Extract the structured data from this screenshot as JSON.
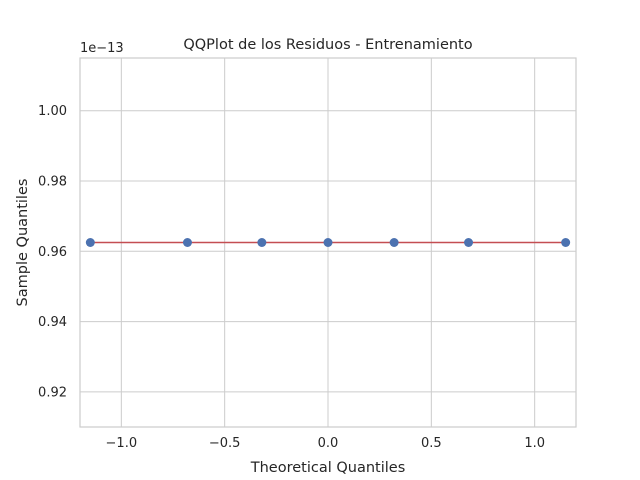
{
  "chart_data": {
    "type": "scatter",
    "title": "QQPlot de los Residuos - Entrenamiento",
    "xlabel": "Theoretical Quantiles",
    "ylabel": "Sample Quantiles",
    "y_offset_label": "1e−13",
    "xlim": [
      -1.2,
      1.2
    ],
    "ylim": [
      0.91,
      1.015
    ],
    "x_ticks": [
      -1.0,
      -0.5,
      0.0,
      0.5,
      1.0
    ],
    "x_tick_labels": [
      "−1.0",
      "−0.5",
      "0.0",
      "0.5",
      "1.0"
    ],
    "y_ticks": [
      0.92,
      0.94,
      0.96,
      0.98,
      1.0
    ],
    "y_tick_labels": [
      "0.92",
      "0.94",
      "0.96",
      "0.98",
      "1.00"
    ],
    "grid": true,
    "points": {
      "x": [
        -1.15,
        -0.68,
        -0.32,
        0.0,
        0.32,
        0.68,
        1.15
      ],
      "y": [
        0.9625,
        0.9625,
        0.9625,
        0.9625,
        0.9625,
        0.9625,
        0.9625
      ],
      "color": "#4c72b0"
    },
    "reference_line": {
      "x": [
        -1.15,
        1.15
      ],
      "y": [
        0.9625,
        0.9625
      ],
      "color": "#c44e52"
    }
  }
}
